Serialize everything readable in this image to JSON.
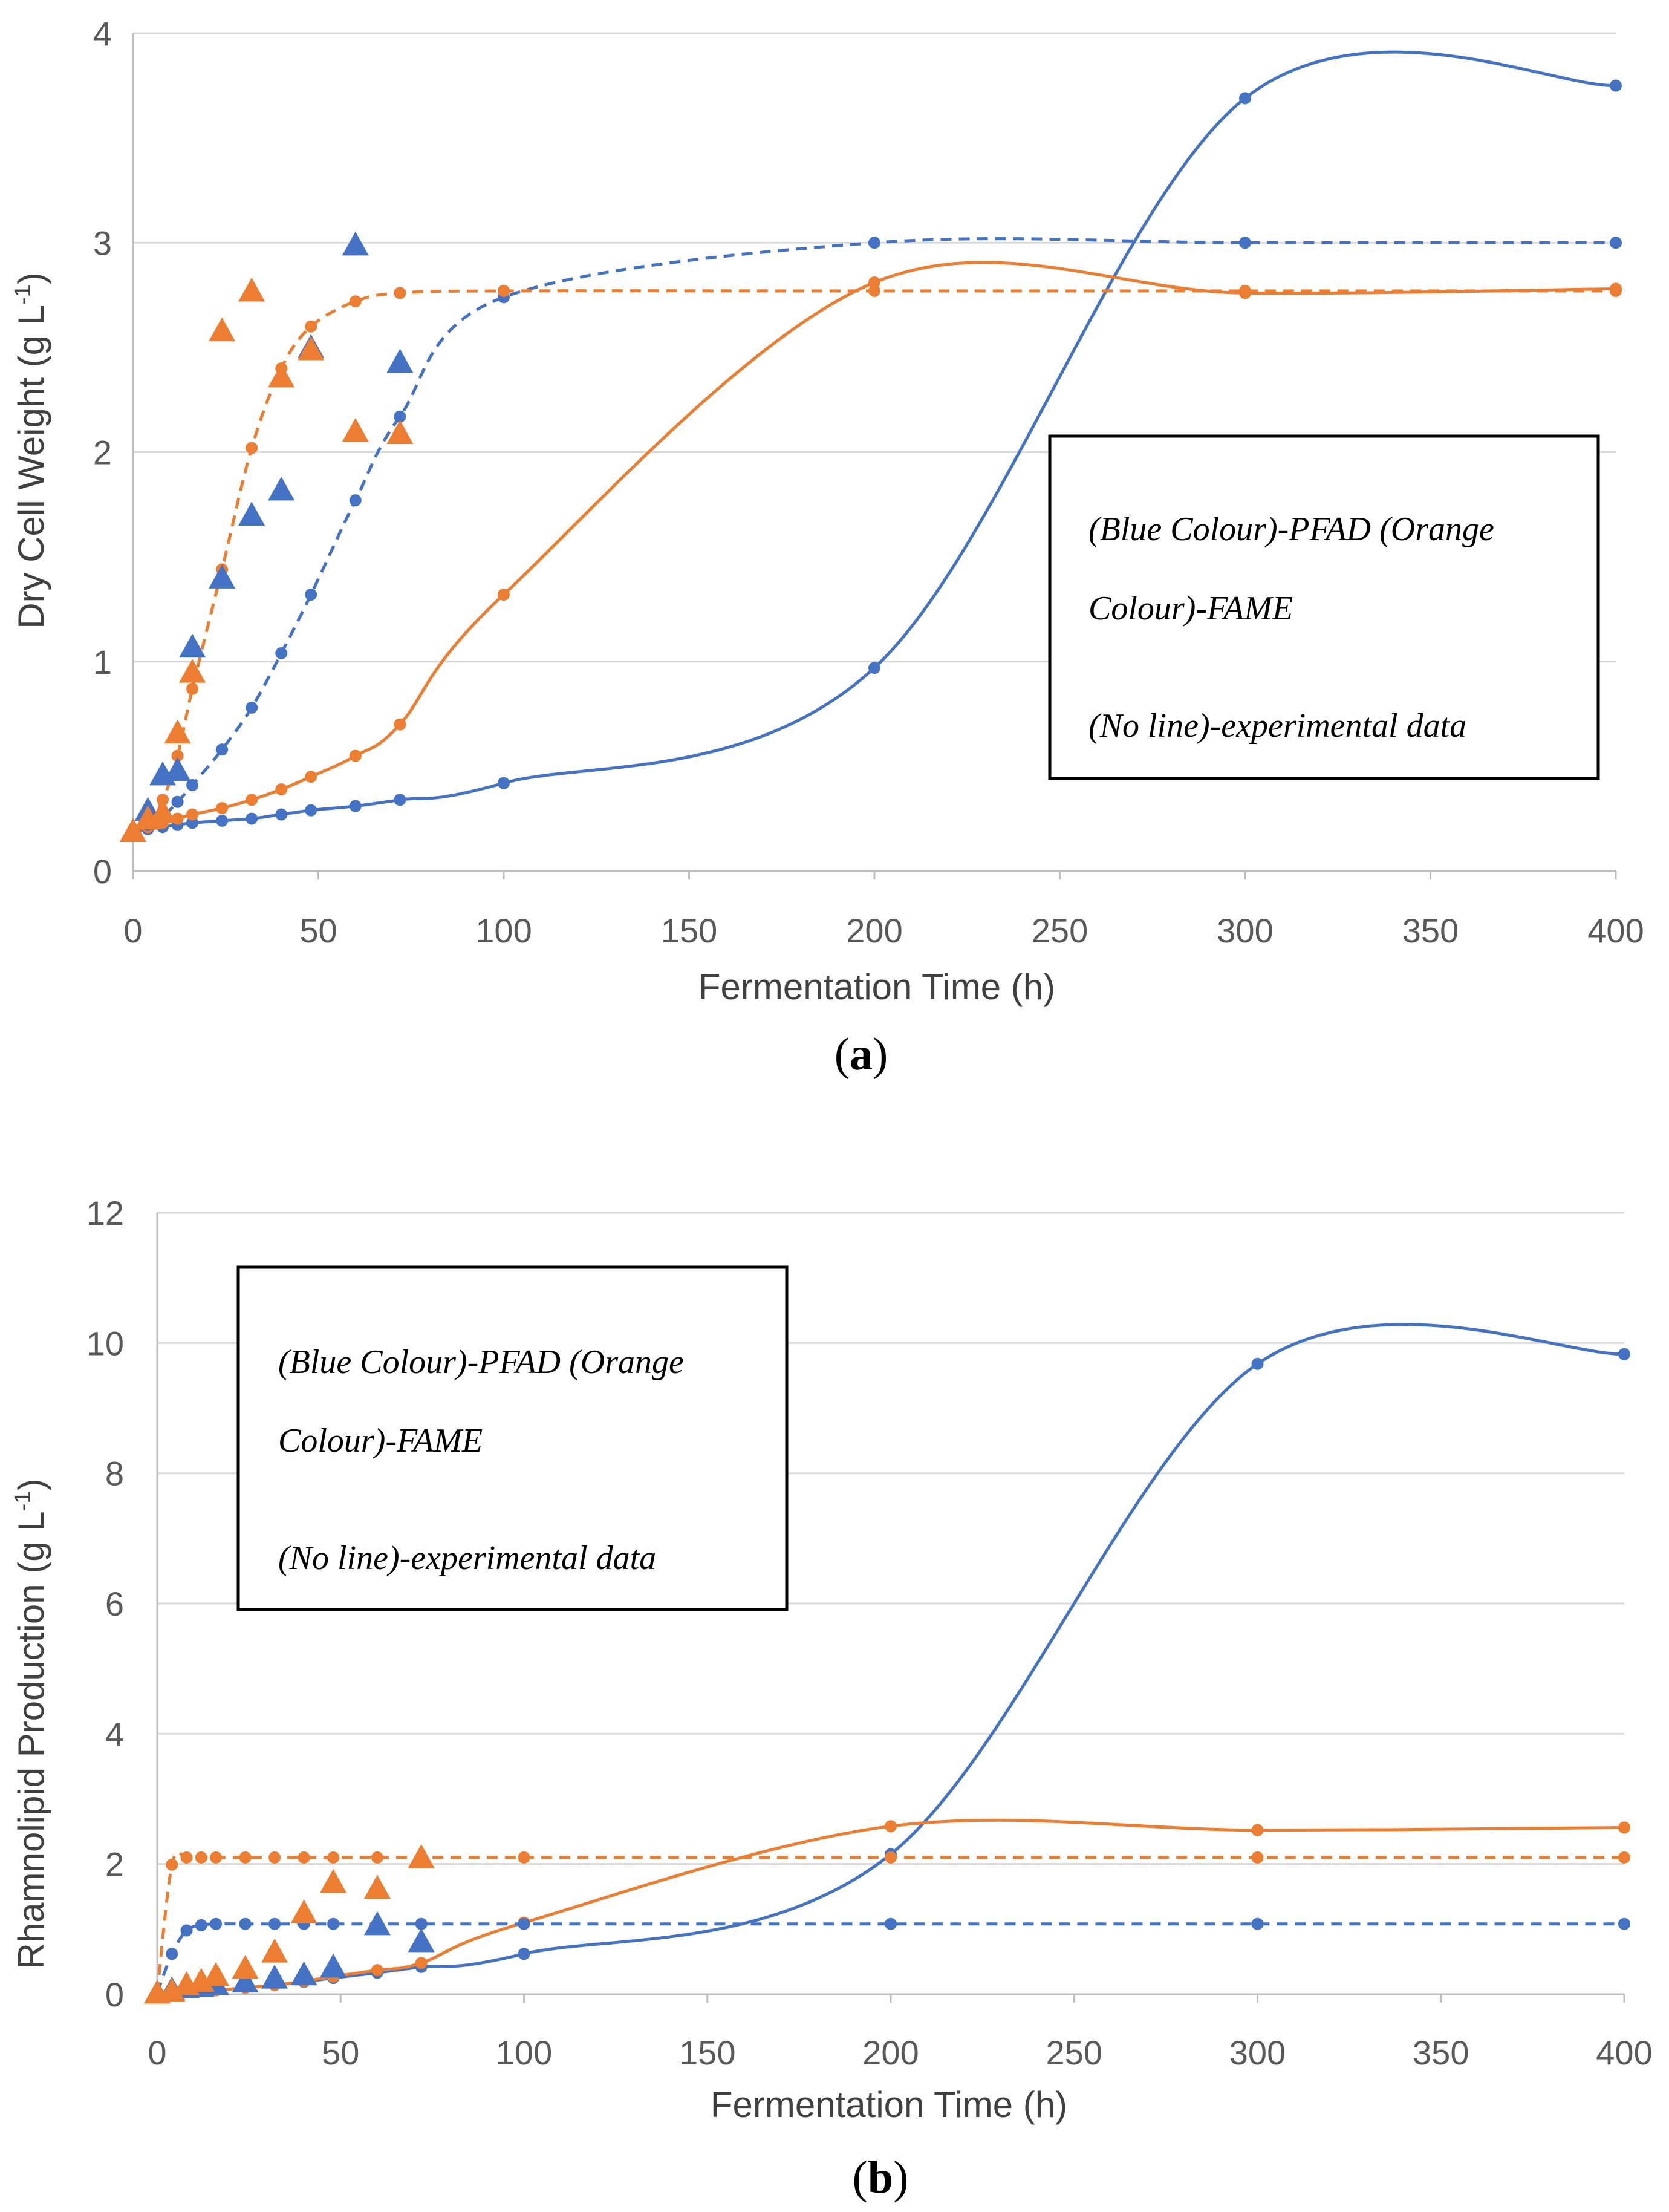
{
  "colors": {
    "blue": "#4472C4",
    "orange": "#ED7D31",
    "grid": "#d9d9d9",
    "axis": "#bfbfbf"
  },
  "chart_data": [
    {
      "type": "line",
      "caption_letter": "a",
      "xlabel": "Fermentation Time (h)",
      "ylabel": "Dry Cell Weight (g L",
      "ylabel_sup": "-1",
      "ylabel_end": ")",
      "xlim": [
        0,
        400
      ],
      "ylim": [
        0,
        4
      ],
      "xticks": [
        "0",
        "50",
        "100",
        "150",
        "200",
        "250",
        "300",
        "350",
        "400"
      ],
      "yticks": [
        "0",
        "1",
        "2",
        "3",
        "4"
      ],
      "grid": "horizontal",
      "legend": {
        "placement": "right",
        "line1": "(Blue Colour)-PFAD (Orange",
        "line2": "Colour)-FAME",
        "line3": "(No line)-experimental data"
      },
      "series": [
        {
          "color": "blue",
          "style": "solid",
          "marker": "circle",
          "x": [
            0,
            4,
            8,
            12,
            16,
            24,
            32,
            40,
            48,
            60,
            72,
            100,
            200,
            300,
            400
          ],
          "y": [
            0.19,
            0.2,
            0.21,
            0.22,
            0.23,
            0.24,
            0.25,
            0.27,
            0.29,
            0.31,
            0.34,
            0.42,
            0.97,
            3.69,
            3.75
          ]
        },
        {
          "color": "orange",
          "style": "solid",
          "marker": "circle",
          "x": [
            0,
            4,
            8,
            12,
            16,
            24,
            32,
            40,
            48,
            60,
            72,
            100,
            200,
            300,
            400
          ],
          "y": [
            0.19,
            0.21,
            0.23,
            0.25,
            0.27,
            0.3,
            0.34,
            0.39,
            0.45,
            0.55,
            0.7,
            1.32,
            2.81,
            2.76,
            2.78
          ]
        },
        {
          "color": "blue",
          "style": "dashed",
          "marker": "circle",
          "x": [
            0,
            4,
            8,
            12,
            16,
            24,
            32,
            40,
            48,
            60,
            72,
            100,
            200,
            300,
            400
          ],
          "y": [
            0.19,
            0.22,
            0.26,
            0.33,
            0.41,
            0.58,
            0.78,
            1.04,
            1.32,
            1.77,
            2.17,
            2.74,
            3.0,
            3.0,
            3.0
          ]
        },
        {
          "color": "orange",
          "style": "dashed",
          "marker": "circle",
          "x": [
            0,
            4,
            8,
            12,
            16,
            24,
            32,
            40,
            48,
            60,
            72,
            100,
            200,
            300,
            400
          ],
          "y": [
            0.19,
            0.24,
            0.34,
            0.55,
            0.87,
            1.44,
            2.02,
            2.4,
            2.6,
            2.72,
            2.76,
            2.77,
            2.77,
            2.77,
            2.77
          ]
        },
        {
          "color": "blue",
          "style": "none",
          "marker": "triangle",
          "x": [
            0,
            4,
            8,
            12,
            16,
            24,
            32,
            40,
            48,
            60,
            72
          ],
          "y": [
            0.19,
            0.29,
            0.46,
            0.48,
            1.07,
            1.4,
            1.7,
            1.82,
            2.5,
            2.99,
            2.43
          ]
        },
        {
          "color": "orange",
          "style": "none",
          "marker": "triangle",
          "x": [
            0,
            4,
            8,
            12,
            16,
            24,
            32,
            40,
            48,
            60,
            72
          ],
          "y": [
            0.19,
            0.25,
            0.28,
            0.66,
            0.95,
            2.58,
            2.77,
            2.36,
            2.49,
            2.1,
            2.09
          ]
        }
      ]
    },
    {
      "type": "line",
      "caption_letter": "b",
      "xlabel": "Fermentation Time (h)",
      "ylabel": "Rhamnolipid Production (g L",
      "ylabel_sup": "-1",
      "ylabel_end": ")",
      "xlim": [
        0,
        400
      ],
      "ylim": [
        0,
        12
      ],
      "xticks": [
        "0",
        "50",
        "100",
        "150",
        "200",
        "250",
        "300",
        "350",
        "400"
      ],
      "yticks": [
        "0",
        "2",
        "4",
        "6",
        "8",
        "10",
        "12"
      ],
      "grid": "horizontal",
      "legend": {
        "placement": "top-left",
        "line1": "(Blue Colour)-PFAD (Orange",
        "line2": "Colour)-FAME",
        "line3": "(No line)-experimental data"
      },
      "series": [
        {
          "color": "blue",
          "style": "solid",
          "marker": "circle",
          "x": [
            0,
            4,
            8,
            12,
            16,
            24,
            32,
            40,
            48,
            60,
            72,
            100,
            200,
            300,
            400
          ],
          "y": [
            0.02,
            0.03,
            0.04,
            0.05,
            0.06,
            0.1,
            0.14,
            0.19,
            0.25,
            0.33,
            0.42,
            0.62,
            2.15,
            9.68,
            9.83
          ]
        },
        {
          "color": "orange",
          "style": "solid",
          "marker": "circle",
          "x": [
            0,
            4,
            8,
            12,
            16,
            24,
            32,
            40,
            48,
            60,
            72,
            100,
            200,
            300,
            400
          ],
          "y": [
            0.02,
            0.03,
            0.04,
            0.05,
            0.06,
            0.1,
            0.14,
            0.2,
            0.27,
            0.37,
            0.48,
            1.1,
            2.58,
            2.52,
            2.56
          ]
        },
        {
          "color": "blue",
          "style": "dashed",
          "marker": "circle",
          "x": [
            0,
            4,
            8,
            12,
            16,
            24,
            32,
            40,
            48,
            60,
            72,
            100,
            200,
            300,
            400
          ],
          "y": [
            0.02,
            0.62,
            0.98,
            1.06,
            1.08,
            1.08,
            1.08,
            1.08,
            1.08,
            1.08,
            1.08,
            1.08,
            1.08,
            1.08,
            1.08
          ]
        },
        {
          "color": "orange",
          "style": "dashed",
          "marker": "circle",
          "x": [
            0,
            4,
            8,
            12,
            16,
            24,
            32,
            40,
            48,
            60,
            72,
            100,
            200,
            300,
            400
          ],
          "y": [
            0.02,
            1.99,
            2.1,
            2.1,
            2.1,
            2.1,
            2.1,
            2.1,
            2.1,
            2.1,
            2.1,
            2.1,
            2.1,
            2.1,
            2.1
          ]
        },
        {
          "color": "blue",
          "style": "none",
          "marker": "triangle",
          "x": [
            0,
            4,
            8,
            12,
            16,
            24,
            32,
            40,
            48,
            60,
            72
          ],
          "y": [
            0.02,
            0.07,
            0.1,
            0.12,
            0.15,
            0.19,
            0.25,
            0.3,
            0.42,
            1.07,
            0.81
          ]
        },
        {
          "color": "orange",
          "style": "none",
          "marker": "triangle",
          "x": [
            0,
            4,
            8,
            12,
            16,
            24,
            32,
            40,
            48,
            60,
            72
          ],
          "y": [
            0.02,
            0.05,
            0.15,
            0.2,
            0.29,
            0.4,
            0.65,
            1.25,
            1.72,
            1.63,
            2.1
          ]
        }
      ]
    }
  ]
}
